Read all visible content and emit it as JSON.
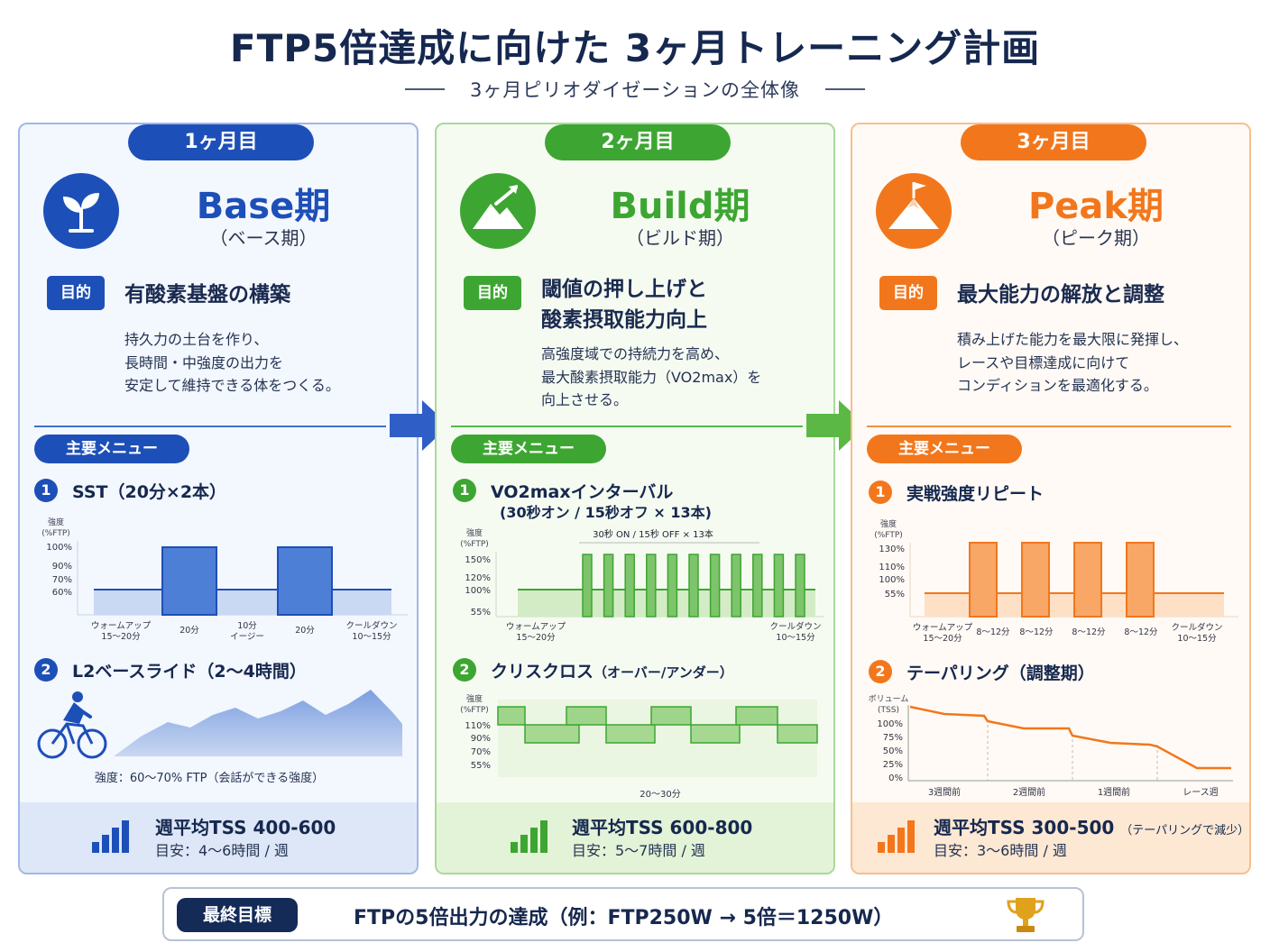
{
  "title": "FTP5倍達成に向けた 3ヶ月トレーニング計画",
  "subtitle": "3ヶ月ピリオダイゼーションの全体像",
  "colors": {
    "blue": "#1d4fb8",
    "green": "#3da632",
    "orange": "#f2771c",
    "navy": "#142a57"
  },
  "phases": [
    {
      "month": "1ヶ月目",
      "icon": "sprout-icon",
      "name": "Base期",
      "name_sub": "（ベース期）",
      "purpose_tag": "目的",
      "purpose_title": [
        "有酸素基盤の構築"
      ],
      "purpose_desc": [
        "持久力の土台を作り、",
        "長時間・中強度の出力を",
        "安定して維持できる体をつくる。"
      ],
      "menu_label": "主要メニュー",
      "items": [
        {
          "num": "1",
          "title": "SST（20分×2本）",
          "chart": {
            "ylabel": [
              "強度",
              "(%FTP)"
            ],
            "yticks": [
              "100%",
              "90%",
              "70%",
              "60%"
            ],
            "xlabels": [
              [
                "ウォームアップ",
                "15〜20分"
              ],
              [
                "20分"
              ],
              [
                "10分",
                "イージー"
              ],
              [
                "20分"
              ],
              [
                "クールダウン",
                "10〜15分"
              ]
            ]
          }
        },
        {
          "num": "2",
          "title": "L2ベースライド（2〜4時間）",
          "icon": "cyclist-icon",
          "caption": "強度：60〜70% FTP（会話ができる強度）"
        }
      ],
      "tss": "週平均TSS 400-600",
      "tss_note": "",
      "hours": "目安：4〜6時間 / 週"
    },
    {
      "month": "2ヶ月目",
      "icon": "mountain-arrow-icon",
      "name": "Build期",
      "name_sub": "（ビルド期）",
      "purpose_tag": "目的",
      "purpose_title": [
        "閾値の押し上げと",
        "酸素摂取能力向上"
      ],
      "purpose_desc": [
        "高強度域での持続力を高め、",
        "最大酸素摂取能力（VO2max）を",
        "向上させる。"
      ],
      "menu_label": "主要メニュー",
      "items": [
        {
          "num": "1",
          "title": "VO2maxインターバル",
          "title2": "(30秒オン / 15秒オフ × 13本)",
          "chart": {
            "ylabel": [
              "強度",
              "(%FTP)"
            ],
            "yticks": [
              "150%",
              "120%",
              "100%",
              "55%"
            ],
            "annotation": "30秒 ON / 15秒 OFF × 13本",
            "xlabels": [
              [
                "ウォームアップ",
                "15〜20分"
              ],
              [
                "クールダウン",
                "10〜15分"
              ]
            ]
          }
        },
        {
          "num": "2",
          "title": "クリスクロス",
          "title_small": "（オーバー/アンダー）",
          "chart": {
            "ylabel": [
              "強度",
              "(%FTP)"
            ],
            "yticks": [
              "110%",
              "90%",
              "70%",
              "55%"
            ],
            "xlabel": "20〜30分"
          }
        }
      ],
      "tss": "週平均TSS 600-800",
      "tss_note": "",
      "hours": "目安：5〜7時間 / 週"
    },
    {
      "month": "3ヶ月目",
      "icon": "mountain-flag-icon",
      "name": "Peak期",
      "name_sub": "（ピーク期）",
      "purpose_tag": "目的",
      "purpose_title": [
        "最大能力の解放と調整"
      ],
      "purpose_desc": [
        "積み上げた能力を最大限に発揮し、",
        "レースや目標達成に向けて",
        "コンディションを最適化する。"
      ],
      "menu_label": "主要メニュー",
      "items": [
        {
          "num": "1",
          "title": "実戦強度リピート",
          "chart": {
            "ylabel": [
              "強度",
              "(%FTP)"
            ],
            "yticks": [
              "130%",
              "110%",
              "100%",
              "55%"
            ],
            "xlabels": [
              [
                "ウォームアップ",
                "15〜20分"
              ],
              [
                "8〜12分"
              ],
              [
                "8〜12分"
              ],
              [
                "8〜12分"
              ],
              [
                "8〜12分"
              ],
              [
                "クールダウン",
                "10〜15分"
              ]
            ]
          }
        },
        {
          "num": "2",
          "title": "テーパリング（調整期）",
          "chart": {
            "ylabel": [
              "ボリューム",
              "(TSS)"
            ],
            "yticks": [
              "100%",
              "75%",
              "50%",
              "25%",
              "0%"
            ],
            "xlabels": [
              "3週間前",
              "2週間前",
              "1週間前",
              "レース週"
            ]
          }
        }
      ],
      "tss": "週平均TSS 300-500",
      "tss_note": "（テーパリングで減少）",
      "hours": "目安：3〜6時間 / 週"
    }
  ],
  "goal": {
    "label": "最終目標",
    "text": "FTPの5倍出力の達成（例：FTP250W → 5倍＝1250W）",
    "icon": "trophy-icon"
  }
}
